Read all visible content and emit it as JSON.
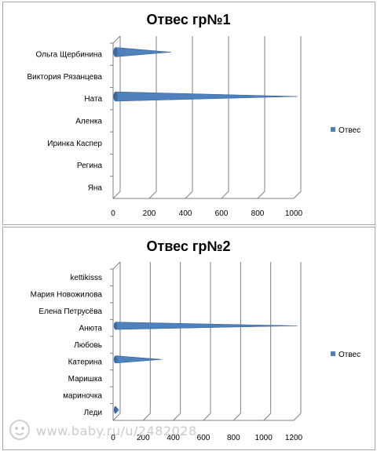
{
  "chart_data": [
    {
      "type": "bar",
      "orientation": "horizontal",
      "bar_shape": "cone",
      "title": "Отвес гр№1",
      "categories": [
        "Ольга Щербинина",
        "Виктория Рязанцева",
        "Ната",
        "Аленка",
        "Иринка Каспер",
        "Регина",
        "Яна"
      ],
      "series": [
        {
          "name": "Отвес",
          "values": [
            300,
            0,
            1000,
            0,
            0,
            0,
            0
          ]
        }
      ],
      "xlim": [
        0,
        1000
      ],
      "xticks": [
        "0",
        "200",
        "400",
        "600",
        "800",
        "1000"
      ],
      "grid": true,
      "legend_position": "right",
      "color": "#4f81bd"
    },
    {
      "type": "bar",
      "orientation": "horizontal",
      "bar_shape": "cone",
      "title": "Отвес гр№2",
      "categories": [
        "kettikisss",
        "Мария Новожилова",
        "Елена Петрусёва",
        "Анюта",
        "Любовь",
        "Катерина",
        "Маришка",
        "мариночка",
        "Леди"
      ],
      "series": [
        {
          "name": "Отвес",
          "values": [
            0,
            0,
            0,
            1200,
            0,
            300,
            0,
            0,
            15
          ]
        }
      ],
      "xlim": [
        0,
        1200
      ],
      "xticks": [
        "0",
        "200",
        "400",
        "600",
        "800",
        "1000",
        "1200"
      ],
      "grid": true,
      "legend_position": "right",
      "color": "#4f81bd"
    }
  ],
  "watermark": {
    "text": "www.baby.ru/u/2482028"
  }
}
